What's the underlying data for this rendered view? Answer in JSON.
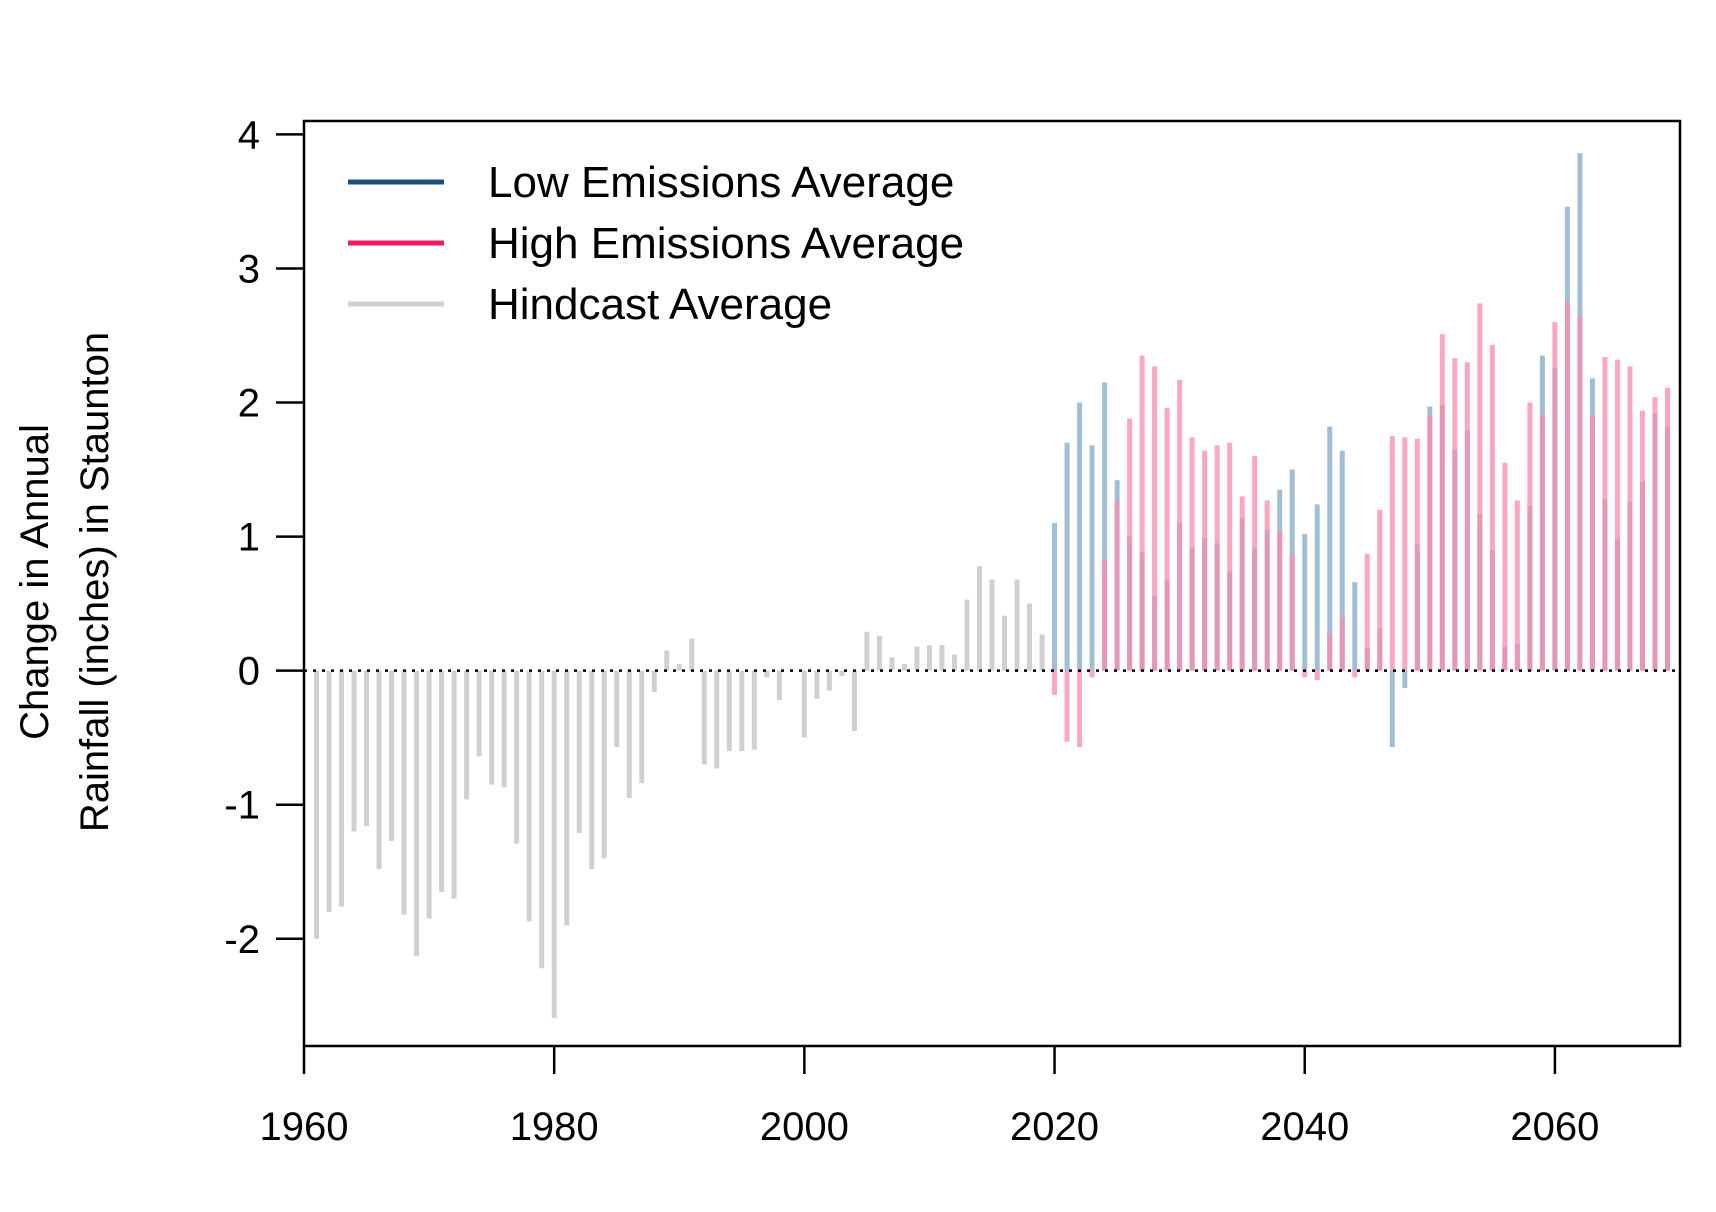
{
  "chart_data": {
    "type": "bar",
    "title": "",
    "xlabel": "",
    "ylabel_lines": [
      "Change in Annual",
      "Rainfall (inches) in Staunton"
    ],
    "xlim": [
      1960,
      2070
    ],
    "ylim": [
      -2.8,
      4.1
    ],
    "xticks": [
      1960,
      1980,
      2000,
      2020,
      2040,
      2060
    ],
    "yticks": [
      -2,
      -1,
      0,
      1,
      2,
      3,
      4
    ],
    "reference_line": {
      "y": 0,
      "style": "dotted",
      "color": "#000000"
    },
    "grid": false,
    "legend": {
      "position": "top-left"
    },
    "series": [
      {
        "name": "Low Emissions Average",
        "legend_color": "#1a5081",
        "bar_color": "#7ba2c3",
        "opacity": 0.7,
        "x": [
          2020,
          2021,
          2022,
          2023,
          2024,
          2025,
          2026,
          2027,
          2028,
          2029,
          2030,
          2031,
          2032,
          2033,
          2034,
          2035,
          2036,
          2037,
          2038,
          2039,
          2040,
          2041,
          2042,
          2043,
          2044,
          2045,
          2046,
          2047,
          2048,
          2049,
          2050,
          2051,
          2052,
          2053,
          2054,
          2055,
          2056,
          2057,
          2058,
          2059,
          2060,
          2061,
          2062,
          2063,
          2064,
          2065,
          2066,
          2067,
          2068,
          2069
        ],
        "values": [
          1.1,
          1.7,
          2.0,
          1.68,
          2.15,
          1.42,
          1.0,
          0.88,
          0.56,
          0.68,
          1.1,
          0.92,
          0.99,
          0.95,
          0.74,
          1.14,
          0.91,
          1.05,
          1.35,
          1.5,
          1.02,
          1.24,
          1.82,
          1.64,
          0.66,
          0.17,
          0.32,
          -0.57,
          -0.13,
          0.94,
          1.97,
          1.98,
          1.65,
          1.79,
          1.17,
          0.9,
          0.18,
          0.2,
          1.23,
          2.35,
          2.26,
          3.46,
          3.86,
          2.18,
          1.28,
          0.98,
          1.26,
          1.41,
          1.92,
          1.82
        ]
      },
      {
        "name": "High Emissions Average",
        "legend_color": "#ee1a5c",
        "bar_color": "#fb8aad",
        "opacity": 0.75,
        "x": [
          2020,
          2021,
          2022,
          2023,
          2024,
          2025,
          2026,
          2027,
          2028,
          2029,
          2030,
          2031,
          2032,
          2033,
          2034,
          2035,
          2036,
          2037,
          2038,
          2039,
          2040,
          2041,
          2042,
          2043,
          2044,
          2045,
          2046,
          2047,
          2048,
          2049,
          2050,
          2051,
          2052,
          2053,
          2054,
          2055,
          2056,
          2057,
          2058,
          2059,
          2060,
          2061,
          2062,
          2063,
          2064,
          2065,
          2066,
          2067,
          2068,
          2069
        ],
        "values": [
          -0.18,
          -0.53,
          -0.57,
          -0.05,
          0.82,
          1.26,
          1.88,
          2.35,
          2.27,
          1.96,
          2.17,
          1.74,
          1.64,
          1.68,
          1.7,
          1.3,
          1.6,
          1.27,
          1.04,
          0.86,
          -0.05,
          -0.07,
          0.28,
          0.4,
          -0.05,
          0.87,
          1.2,
          1.75,
          1.74,
          1.73,
          1.9,
          2.51,
          2.33,
          2.3,
          2.74,
          2.43,
          1.55,
          1.27,
          2.0,
          1.91,
          2.6,
          2.75,
          2.64,
          1.9,
          2.34,
          2.32,
          2.27,
          1.94,
          2.04,
          2.11
        ]
      },
      {
        "name": "Hindcast Average",
        "legend_color": "#d0d0d0",
        "bar_color": "#d0d0d0",
        "opacity": 1,
        "x": [
          1961,
          1962,
          1963,
          1964,
          1965,
          1966,
          1967,
          1968,
          1969,
          1970,
          1971,
          1972,
          1973,
          1974,
          1975,
          1976,
          1977,
          1978,
          1979,
          1980,
          1981,
          1982,
          1983,
          1984,
          1985,
          1986,
          1987,
          1988,
          1989,
          1990,
          1991,
          1992,
          1993,
          1994,
          1995,
          1996,
          1997,
          1998,
          1999,
          2000,
          2001,
          2002,
          2003,
          2004,
          2005,
          2006,
          2007,
          2008,
          2009,
          2010,
          2011,
          2012,
          2013,
          2014,
          2015,
          2016,
          2017,
          2018,
          2019
        ],
        "values": [
          -2.0,
          -1.8,
          -1.76,
          -1.2,
          -1.16,
          -1.48,
          -1.27,
          -1.82,
          -2.13,
          -1.85,
          -1.65,
          -1.7,
          -0.96,
          -0.64,
          -0.85,
          -0.87,
          -1.29,
          -1.87,
          -2.22,
          -2.59,
          -1.9,
          -1.21,
          -1.48,
          -1.4,
          -0.57,
          -0.95,
          -0.84,
          -0.16,
          0.15,
          0.05,
          0.24,
          -0.7,
          -0.73,
          -0.6,
          -0.6,
          -0.59,
          -0.05,
          -0.22,
          0.0,
          -0.5,
          -0.21,
          -0.15,
          -0.04,
          -0.45,
          0.29,
          0.26,
          0.1,
          0.05,
          0.18,
          0.19,
          0.19,
          0.12,
          0.53,
          0.78,
          0.68,
          0.41,
          0.68,
          0.5,
          0.27
        ]
      }
    ]
  }
}
